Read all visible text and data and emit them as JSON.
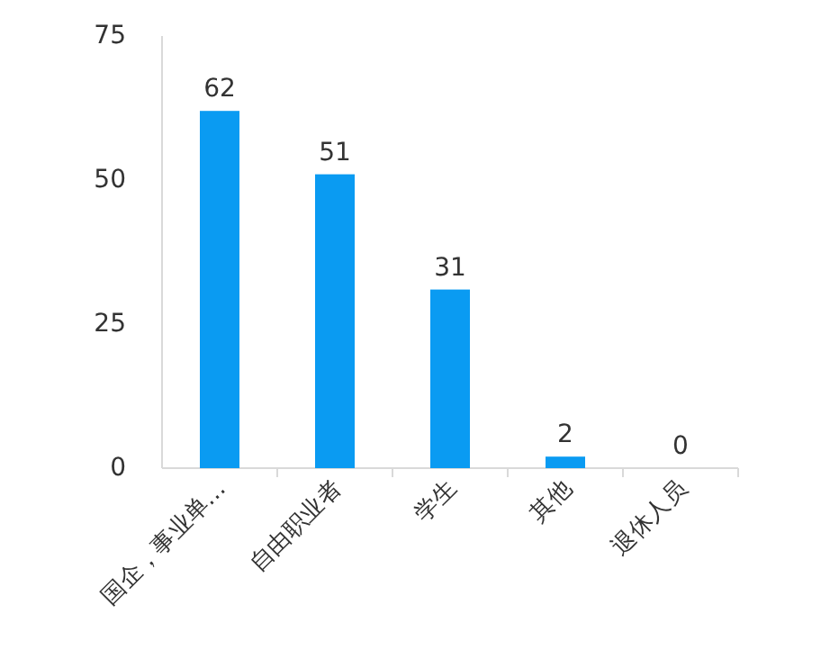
{
  "chart_data": {
    "type": "bar",
    "categories": [
      "国企，事业单…",
      "自由职业者",
      "学生",
      "其他",
      "退休人员"
    ],
    "values": [
      62,
      51,
      31,
      2,
      0
    ],
    "color": "#0a9bf2",
    "ylim": [
      0,
      75
    ],
    "yticks": [
      0,
      25,
      50,
      75
    ],
    "data_labels": true,
    "grid": false
  }
}
